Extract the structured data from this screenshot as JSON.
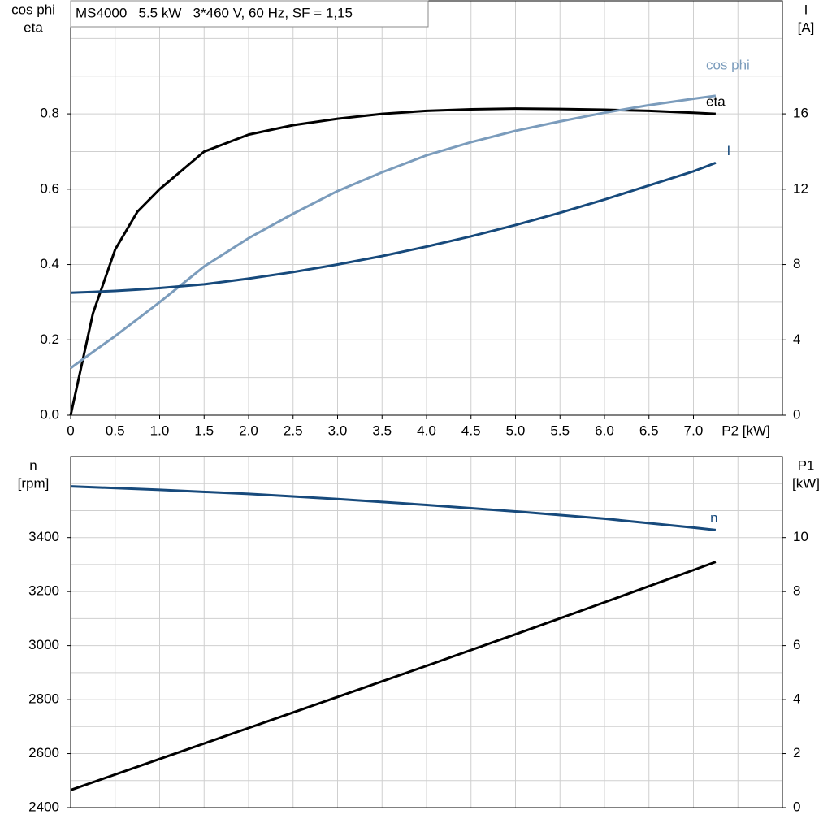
{
  "chart_data": [
    {
      "type": "line",
      "title": "MS4000   5.5 kW   3*460 V, 60 Hz, SF = 1,15",
      "ylabel": [
        "cos phi",
        "eta"
      ],
      "y2label": [
        "I",
        "[A]"
      ],
      "xlabel": "P2 [kW]",
      "x": [
        0,
        0.25,
        0.5,
        0.75,
        1,
        1.5,
        2,
        2.5,
        3,
        3.5,
        4,
        4.5,
        5,
        5.5,
        6,
        6.5,
        7,
        7.25
      ],
      "series": [
        {
          "name": "eta",
          "color": "#000000",
          "values": [
            0,
            0.27,
            0.44,
            0.54,
            0.6,
            0.7,
            0.745,
            0.77,
            0.787,
            0.8,
            0.808,
            0.812,
            0.814,
            0.813,
            0.811,
            0.808,
            0.803,
            0.8
          ]
        },
        {
          "name": "cos phi",
          "color": "#7b9cbc",
          "values": [
            0.125,
            0.168,
            0.21,
            0.255,
            0.3,
            0.395,
            0.47,
            0.535,
            0.595,
            0.645,
            0.69,
            0.725,
            0.755,
            0.78,
            0.803,
            0.823,
            0.84,
            0.848
          ]
        },
        {
          "name": "I",
          "color": "#174a7c",
          "axis": "y2",
          "values": [
            6.5,
            6.55,
            6.6,
            6.67,
            6.75,
            6.95,
            7.25,
            7.6,
            8.0,
            8.45,
            8.95,
            9.5,
            10.1,
            10.75,
            11.45,
            12.2,
            12.95,
            13.4
          ]
        }
      ],
      "xlim": [
        0,
        8
      ],
      "xticks": [
        0,
        0.5,
        {
          "value": 1,
          "label": "1.0"
        },
        1.5,
        {
          "value": 2,
          "label": "2.0"
        },
        2.5,
        {
          "value": 3,
          "label": "3.0"
        },
        3.5,
        {
          "value": 4,
          "label": "4.0"
        },
        4.5,
        {
          "value": 5,
          "label": "5.0"
        },
        5.5,
        {
          "value": 6,
          "label": "6.0"
        },
        6.5,
        {
          "value": 7,
          "label": "7.0"
        }
      ],
      "xgrid": [
        0.5,
        1,
        1.5,
        2,
        2.5,
        3,
        3.5,
        4,
        4.5,
        5,
        5.5,
        6,
        6.5,
        7,
        7.5
      ],
      "ylim": [
        0,
        1.1
      ],
      "yticks": [
        {
          "value": 0,
          "label": "0.0"
        },
        0.2,
        0.4,
        0.6,
        0.8
      ],
      "ygrid": [
        0.1,
        0.2,
        0.3,
        0.4,
        0.5,
        0.6,
        0.7,
        0.8,
        0.9,
        1.0
      ],
      "y2lim": [
        0,
        22
      ],
      "y2ticks": [
        0,
        4,
        8,
        12,
        16
      ],
      "grid": true
    },
    {
      "type": "line",
      "ylabel": [
        "n",
        "[rpm]"
      ],
      "y2label": [
        "P1",
        "[kW]"
      ],
      "x": [
        0,
        1,
        2,
        3,
        4,
        5,
        6,
        7,
        7.25
      ],
      "series": [
        {
          "name": "n",
          "color": "#174a7c",
          "values": [
            3590,
            3577,
            3562,
            3543,
            3521,
            3497,
            3470,
            3437,
            3428
          ]
        },
        {
          "color": "#000000",
          "axis": "y2",
          "values": [
            0.65,
            1.8,
            2.95,
            4.1,
            5.25,
            6.42,
            7.6,
            8.8,
            9.1
          ]
        }
      ],
      "xlim": [
        0,
        8
      ],
      "xgrid": [
        0.5,
        1,
        1.5,
        2,
        2.5,
        3,
        3.5,
        4,
        4.5,
        5,
        5.5,
        6,
        6.5,
        7,
        7.5
      ],
      "ylim": [
        2400,
        3700
      ],
      "yticks": [
        2400,
        2600,
        2800,
        3000,
        3200,
        3400
      ],
      "ygrid": [
        2500,
        2600,
        2700,
        2800,
        2900,
        3000,
        3100,
        3200,
        3300,
        3400,
        3500,
        3600
      ],
      "y2lim": [
        0,
        13
      ],
      "y2ticks": [
        0,
        2,
        4,
        6,
        8,
        10
      ],
      "grid": true
    }
  ]
}
